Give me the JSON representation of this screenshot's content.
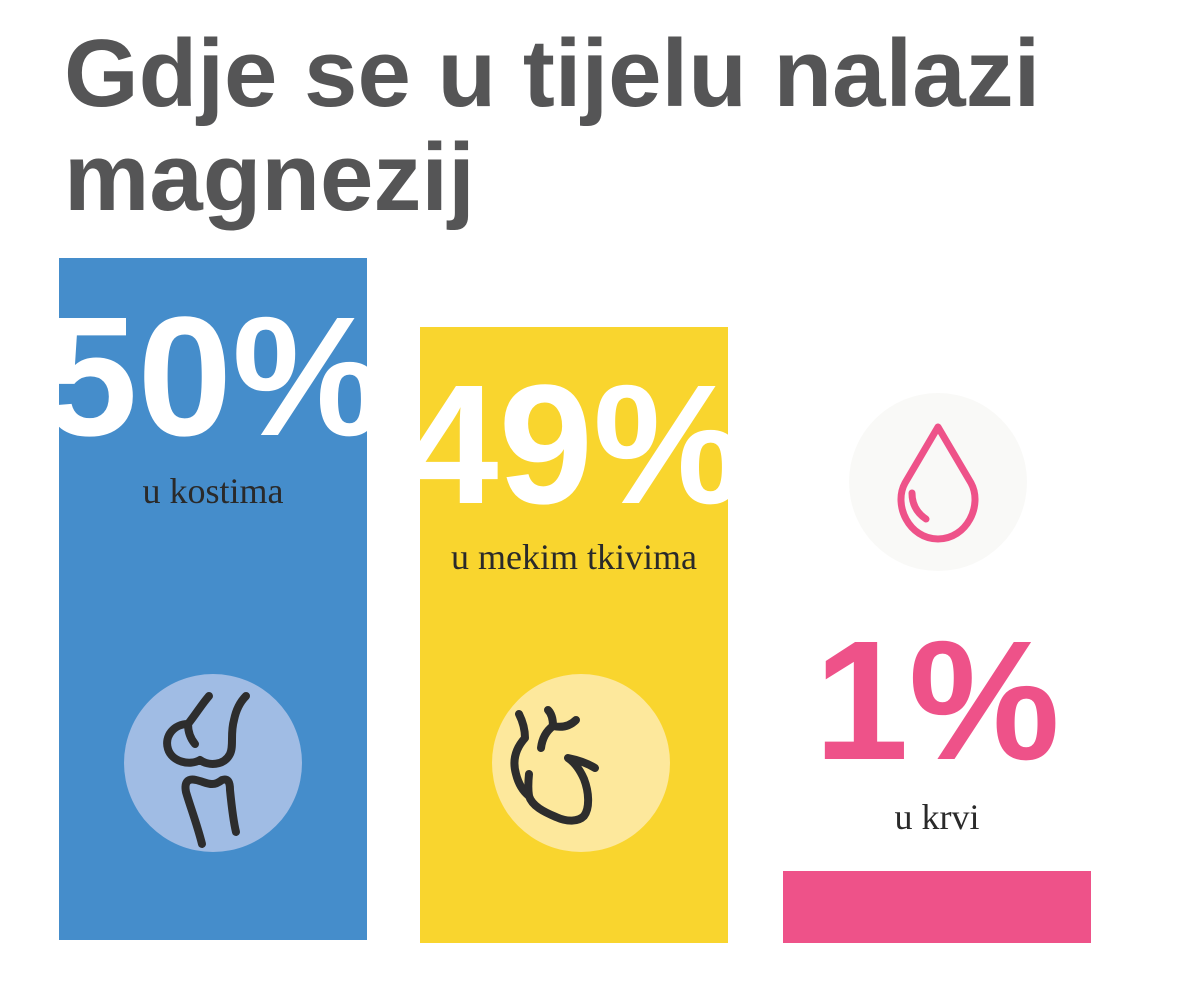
{
  "title": "Gdje se u tijelu nalazi magnezij",
  "chart_data": {
    "type": "bar",
    "title": "Gdje se u tijelu nalazi magnezij",
    "categories": [
      "u kostima",
      "u mekim tkivima",
      "u krvi"
    ],
    "values": [
      50,
      49,
      1
    ],
    "labels": [
      "50%",
      "49%",
      "1%"
    ],
    "unit": "%",
    "icons": [
      "knee-joint-icon",
      "heart-icon",
      "blood-drop-icon"
    ],
    "colors": [
      "#458dcb",
      "#f9d52e",
      "#ee5289"
    ]
  }
}
